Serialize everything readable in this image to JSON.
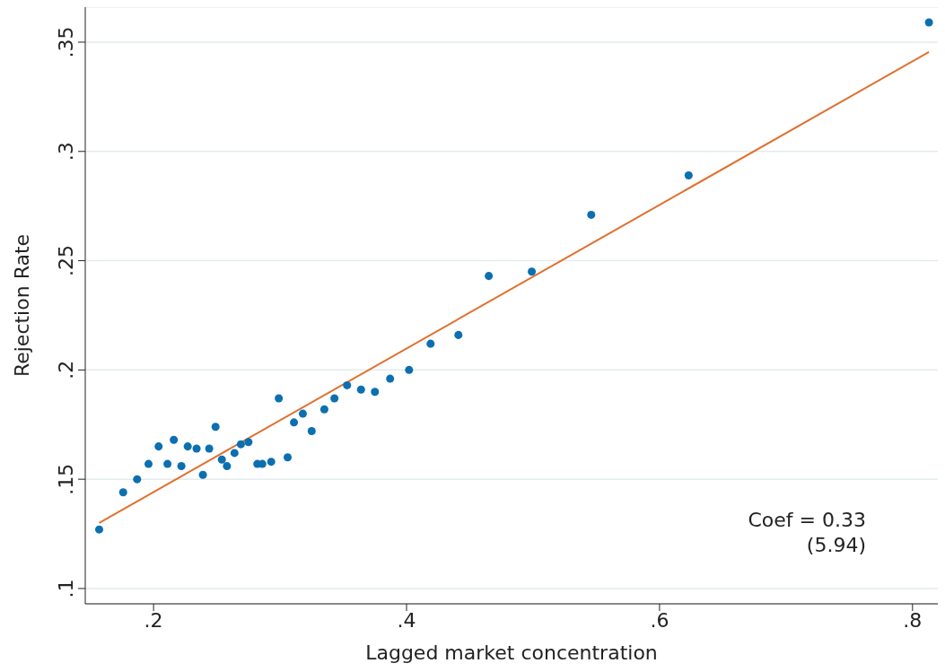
{
  "chart_data": {
    "type": "scatter",
    "xlabel": "Lagged market concentration",
    "ylabel": "Rejection Rate",
    "annotations": [
      "Coef = 0.33",
      "(5.94)"
    ],
    "xlim": [
      0.146,
      0.82
    ],
    "xticks": [
      {
        "value": 0.2,
        "label": ".2"
      },
      {
        "value": 0.4,
        "label": ".4"
      },
      {
        "value": 0.6,
        "label": ".6"
      },
      {
        "value": 0.8,
        "label": ".8"
      }
    ],
    "ylim": [
      0.093,
      0.366
    ],
    "yticks": [
      {
        "value": 0.1,
        "label": ".1"
      },
      {
        "value": 0.15,
        "label": ".15"
      },
      {
        "value": 0.2,
        "label": ".2"
      },
      {
        "value": 0.25,
        "label": ".25"
      },
      {
        "value": 0.3,
        "label": ".3"
      },
      {
        "value": 0.35,
        "label": ".35"
      }
    ],
    "grid": "y",
    "legend": false,
    "marker": "circle",
    "series": [
      {
        "color": "#0c6fb0",
        "x": [
          0.157,
          0.176,
          0.187,
          0.196,
          0.204,
          0.211,
          0.216,
          0.222,
          0.227,
          0.234,
          0.239,
          0.244,
          0.249,
          0.254,
          0.258,
          0.264,
          0.269,
          0.275,
          0.282,
          0.286,
          0.293,
          0.299,
          0.306,
          0.311,
          0.318,
          0.325,
          0.335,
          0.343,
          0.353,
          0.364,
          0.375,
          0.387,
          0.402,
          0.419,
          0.441,
          0.465,
          0.499,
          0.546,
          0.623,
          0.813
        ],
        "values": [
          0.127,
          0.144,
          0.15,
          0.157,
          0.165,
          0.157,
          0.168,
          0.156,
          0.165,
          0.164,
          0.152,
          0.164,
          0.174,
          0.159,
          0.156,
          0.162,
          0.166,
          0.167,
          0.157,
          0.157,
          0.158,
          0.187,
          0.16,
          0.176,
          0.18,
          0.172,
          0.182,
          0.187,
          0.193,
          0.191,
          0.19,
          0.196,
          0.2,
          0.212,
          0.216,
          0.243,
          0.245,
          0.271,
          0.289,
          0.359
        ]
      },
      {
        "type": "line",
        "color": "#e0702e",
        "marker": "none",
        "line_style": "solid",
        "x": [
          0.157,
          0.813
        ],
        "values": [
          0.13,
          0.3455
        ]
      }
    ]
  }
}
